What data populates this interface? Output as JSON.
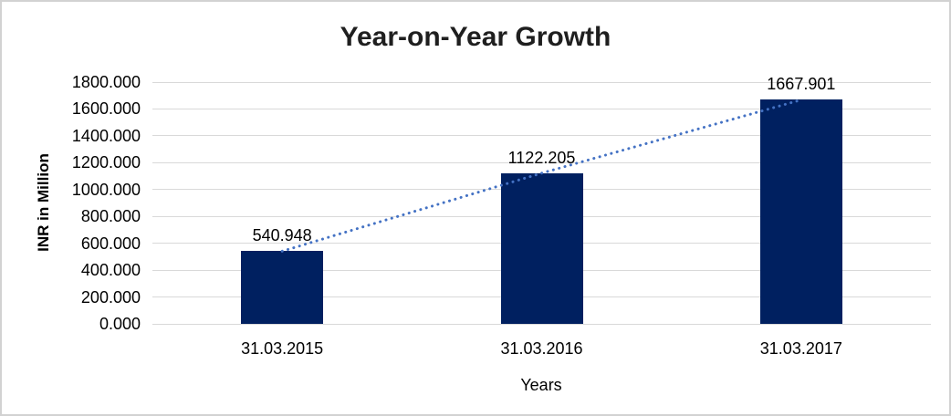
{
  "chart_data": {
    "type": "bar",
    "title": "Year-on-Year Growth",
    "categories": [
      "31.03.2015",
      "31.03.2016",
      "31.03.2017"
    ],
    "values": [
      540.948,
      1122.205,
      1667.901
    ],
    "data_labels": [
      "540.948",
      "1122.205",
      "1667.901"
    ],
    "xlabel": "Years",
    "ylabel": "INR in Million",
    "ylim": [
      0,
      1800
    ],
    "ytick_step": 200,
    "ytick_labels": [
      "0.000",
      "200.000",
      "400.000",
      "600.000",
      "800.000",
      "1000.000",
      "1200.000",
      "1400.000",
      "1600.000",
      "1800.000"
    ],
    "grid": true,
    "legend": "none",
    "trendline": {
      "style": "dotted",
      "color": "#4472C4",
      "through": "bar tops"
    },
    "colors": {
      "bar": "#002060",
      "gridline": "#d9d9d9",
      "frame_border": "#d2d2d2",
      "text": "#000000",
      "title_text": "#1f1f1f"
    }
  }
}
